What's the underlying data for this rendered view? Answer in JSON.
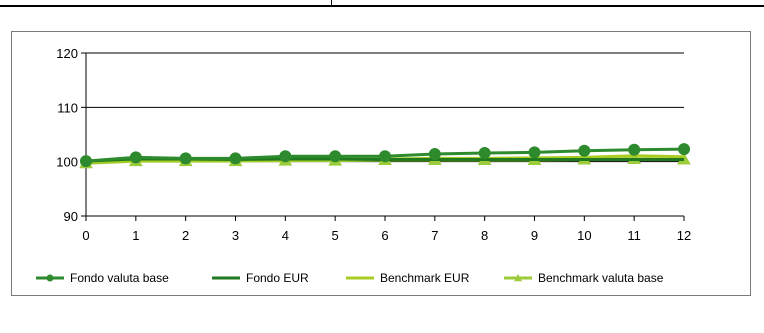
{
  "chart_data": {
    "type": "line",
    "x": [
      0,
      1,
      2,
      3,
      4,
      5,
      6,
      7,
      8,
      9,
      10,
      11,
      12
    ],
    "xticks": [
      "0",
      "1",
      "2",
      "3",
      "4",
      "5",
      "6",
      "7",
      "8",
      "9",
      "10",
      "11",
      "12"
    ],
    "ylim": [
      90,
      120
    ],
    "yticks": [
      "90",
      "100",
      "110",
      "120"
    ],
    "grid": "horizontal",
    "legend_position": "bottom",
    "series": [
      {
        "name": "Fondo valuta base",
        "color": "#2d8a2d",
        "marker": "circle",
        "values": [
          100.1,
          100.8,
          100.6,
          100.6,
          101.0,
          101.0,
          101.0,
          101.4,
          101.6,
          101.7,
          102.0,
          102.2,
          102.3
        ]
      },
      {
        "name": "Fondo EUR",
        "color": "#1f7a1f",
        "marker": "none",
        "values": [
          100.1,
          100.5,
          100.5,
          100.4,
          100.5,
          100.5,
          100.4,
          100.4,
          100.4,
          100.4,
          100.4,
          100.4,
          100.4
        ]
      },
      {
        "name": "Benchmark EUR",
        "color": "#a8cc22",
        "marker": "none",
        "values": [
          99.8,
          100.2,
          100.2,
          100.2,
          100.3,
          100.4,
          100.5,
          100.6,
          100.6,
          100.7,
          100.8,
          101.1,
          100.9
        ]
      },
      {
        "name": "Benchmark valuta base",
        "color": "#9ccc3a",
        "marker": "triangle",
        "values": [
          99.7,
          100.1,
          100.1,
          100.1,
          100.2,
          100.2,
          100.3,
          100.3,
          100.3,
          100.3,
          100.4,
          100.5,
          100.4
        ]
      }
    ]
  }
}
